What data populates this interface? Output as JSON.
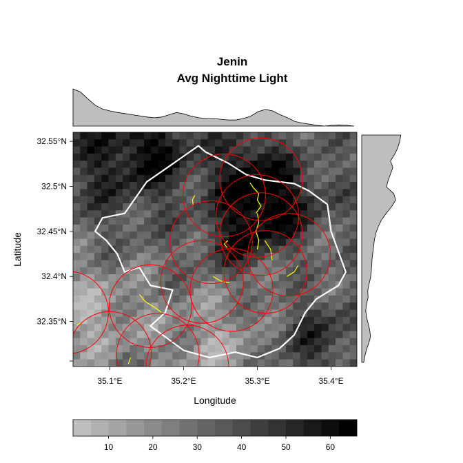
{
  "chart_data": {
    "type": "heatmap",
    "title_line1": "Jenin",
    "title_line2": "Avg Nighttime Light",
    "xlabel": "Longitude",
    "ylabel": "Latitude",
    "xlim": [
      35.05,
      35.435
    ],
    "ylim": [
      32.3,
      32.56
    ],
    "x_ticks": [
      35.1,
      35.2,
      35.3,
      35.4
    ],
    "x_tick_labels": [
      "35.1°E",
      "35.2°E",
      "35.3°E",
      "35.4°E"
    ],
    "y_ticks": [
      32.35,
      32.4,
      32.45,
      32.5,
      32.55
    ],
    "y_tick_labels": [
      "32.35°N",
      "32.4°N",
      "32.45°N",
      "32.5°N",
      "32.55°N"
    ],
    "colorbar": {
      "range": [
        2,
        66
      ],
      "ticks": [
        10,
        20,
        30,
        40,
        50,
        60
      ],
      "tick_labels": [
        "10",
        "20",
        "30",
        "40",
        "50",
        "60"
      ],
      "color_low": "#bebebe",
      "color_high": "#000000"
    },
    "grid": false,
    "legend": "colorbar-bottom",
    "colors": {
      "boundary": "#ffffff",
      "buffers": "#ff0000",
      "roads": "#ffff00",
      "marginal_fill": "#bebebe",
      "frame": "#000000"
    },
    "buffers": [
      {
        "lon": 35.305,
        "lat": 32.508
      },
      {
        "lon": 35.255,
        "lat": 32.49
      },
      {
        "lon": 35.3,
        "lat": 32.467
      },
      {
        "lon": 35.237,
        "lat": 32.438
      },
      {
        "lon": 35.305,
        "lat": 32.447
      },
      {
        "lon": 35.343,
        "lat": 32.424
      },
      {
        "lon": 35.311,
        "lat": 32.405
      },
      {
        "lon": 35.225,
        "lat": 32.394
      },
      {
        "lon": 35.155,
        "lat": 32.367
      },
      {
        "lon": 35.265,
        "lat": 32.385
      },
      {
        "lon": 35.042,
        "lat": 32.36
      },
      {
        "lon": 35.1,
        "lat": 32.315
      },
      {
        "lon": 35.165,
        "lat": 32.313
      },
      {
        "lon": 35.205,
        "lat": 32.3
      }
    ]
  }
}
